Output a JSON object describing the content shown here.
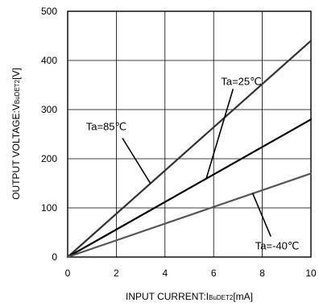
{
  "chart_data": {
    "type": "line",
    "xlabel": {
      "main": "INPUT CURRENT:I",
      "sub": "BuDET2",
      "unit": "[mA]"
    },
    "ylabel": {
      "main": "OUTPUT VOLTAGE:V",
      "sub": "BuDET2",
      "unit": "[V]"
    },
    "xlim": [
      0,
      10
    ],
    "ylim": [
      0,
      500
    ],
    "xticks": [
      0,
      2,
      4,
      6,
      8,
      10
    ],
    "yticks": [
      0,
      100,
      200,
      300,
      400,
      500
    ],
    "grid": true,
    "series": [
      {
        "name": "Ta=85℃",
        "x": [
          0,
          10
        ],
        "y": [
          0,
          440
        ],
        "color": "#333333"
      },
      {
        "name": "Ta=25℃",
        "x": [
          0,
          10
        ],
        "y": [
          0,
          280
        ],
        "color": "#000000"
      },
      {
        "name": "Ta=-40℃",
        "x": [
          0,
          10
        ],
        "y": [
          0,
          170
        ],
        "color": "#555555"
      }
    ],
    "annotations": [
      {
        "text": "Ta=25℃",
        "series": 1,
        "label_at": [
          6.8,
          342
        ],
        "point_at": [
          5.7,
          160
        ]
      },
      {
        "text": "Ta=85℃",
        "series": 0,
        "label_at": [
          2.25,
          242
        ],
        "point_at": [
          3.4,
          150
        ]
      },
      {
        "text": "Ta=-40℃",
        "series": 2,
        "label_at": [
          8.35,
          42
        ],
        "point_at": [
          7.6,
          130
        ]
      }
    ]
  }
}
